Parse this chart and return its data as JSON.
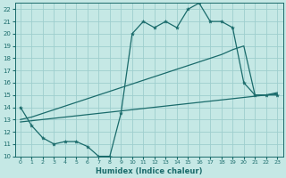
{
  "xlabel": "Humidex (Indice chaleur)",
  "xlim": [
    -0.5,
    23.5
  ],
  "ylim": [
    10,
    22.5
  ],
  "xticks": [
    0,
    1,
    2,
    3,
    4,
    5,
    6,
    7,
    8,
    9,
    10,
    11,
    12,
    13,
    14,
    15,
    16,
    17,
    18,
    19,
    20,
    21,
    22,
    23
  ],
  "yticks": [
    10,
    11,
    12,
    13,
    14,
    15,
    16,
    17,
    18,
    19,
    20,
    21,
    22
  ],
  "bg_color": "#c5e8e5",
  "grid_color": "#9ecece",
  "line_color": "#1a6b6b",
  "line1_x": [
    0,
    1,
    2,
    3,
    4,
    5,
    6,
    7,
    8,
    9,
    10,
    11,
    12,
    13,
    14,
    15,
    16,
    17,
    18,
    19,
    20,
    21,
    22,
    23
  ],
  "line1_y": [
    14,
    12.5,
    11.5,
    11.0,
    11.2,
    11.2,
    10.8,
    10.0,
    10.0,
    13.5,
    20.0,
    21.0,
    20.5,
    21.0,
    20.5,
    22.0,
    22.5,
    21.0,
    21.0,
    20.5,
    16.0,
    15.0,
    15.0,
    15.0
  ],
  "line2_x": [
    0,
    1,
    2,
    3,
    4,
    5,
    6,
    7,
    8,
    9,
    10,
    11,
    12,
    13,
    14,
    15,
    16,
    17,
    18,
    19,
    20,
    21,
    22,
    23
  ],
  "line2_y": [
    13.0,
    13.2,
    13.5,
    13.8,
    14.1,
    14.4,
    14.7,
    15.0,
    15.3,
    15.6,
    15.9,
    16.2,
    16.5,
    16.8,
    17.1,
    17.4,
    17.7,
    18.0,
    18.3,
    18.7,
    19.0,
    15.0,
    15.0,
    15.2
  ],
  "line3_x": [
    0,
    1,
    2,
    3,
    4,
    5,
    6,
    7,
    8,
    9,
    10,
    11,
    12,
    13,
    14,
    15,
    16,
    17,
    18,
    19,
    20,
    21,
    22,
    23
  ],
  "line3_y": [
    12.8,
    12.9,
    13.0,
    13.1,
    13.2,
    13.3,
    13.4,
    13.5,
    13.6,
    13.7,
    13.8,
    13.9,
    14.0,
    14.1,
    14.2,
    14.3,
    14.4,
    14.5,
    14.6,
    14.7,
    14.8,
    14.9,
    15.0,
    15.1
  ]
}
